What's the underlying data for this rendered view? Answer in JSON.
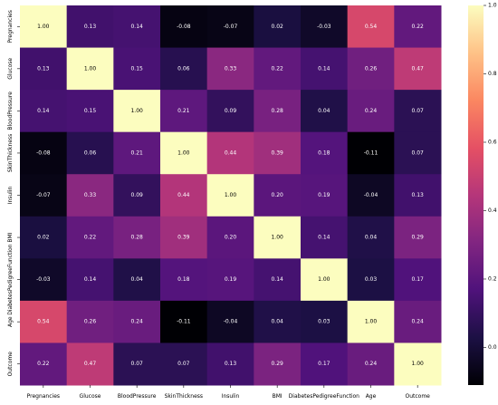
{
  "chart_data": {
    "type": "heatmap",
    "title": "",
    "xlabel": "",
    "ylabel": "",
    "colormap": "magma",
    "value_range": [
      -0.11,
      1.0
    ],
    "categories": [
      "Pregnancies",
      "Glucose",
      "BloodPressure",
      "SkinThickness",
      "Insulin",
      "BMI",
      "DiabetesPedigreeFunction",
      "Age",
      "Outcome"
    ],
    "values": [
      [
        1.0,
        0.13,
        0.14,
        -0.08,
        -0.07,
        0.02,
        -0.03,
        0.54,
        0.22
      ],
      [
        0.13,
        1.0,
        0.15,
        0.06,
        0.33,
        0.22,
        0.14,
        0.26,
        0.47
      ],
      [
        0.14,
        0.15,
        1.0,
        0.21,
        0.09,
        0.28,
        0.04,
        0.24,
        0.07
      ],
      [
        -0.08,
        0.06,
        0.21,
        1.0,
        0.44,
        0.39,
        0.18,
        -0.11,
        0.07
      ],
      [
        -0.07,
        0.33,
        0.09,
        0.44,
        1.0,
        0.2,
        0.19,
        -0.04,
        0.13
      ],
      [
        0.02,
        0.22,
        0.28,
        0.39,
        0.2,
        1.0,
        0.14,
        0.04,
        0.29
      ],
      [
        -0.03,
        0.14,
        0.04,
        0.18,
        0.19,
        0.14,
        1.0,
        0.03,
        0.17
      ],
      [
        0.54,
        0.26,
        0.24,
        -0.11,
        -0.04,
        0.04,
        0.03,
        1.0,
        0.24
      ],
      [
        0.22,
        0.47,
        0.07,
        0.07,
        0.13,
        0.29,
        0.17,
        0.24,
        1.0
      ]
    ],
    "value_format": "0.00",
    "colorbar": {
      "ticks": [
        1.0,
        0.8,
        0.6,
        0.4,
        0.2,
        0.0
      ],
      "tick_labels": [
        "1.0",
        "0.8",
        "0.6",
        "0.4",
        "0.2",
        "0.0"
      ]
    }
  }
}
